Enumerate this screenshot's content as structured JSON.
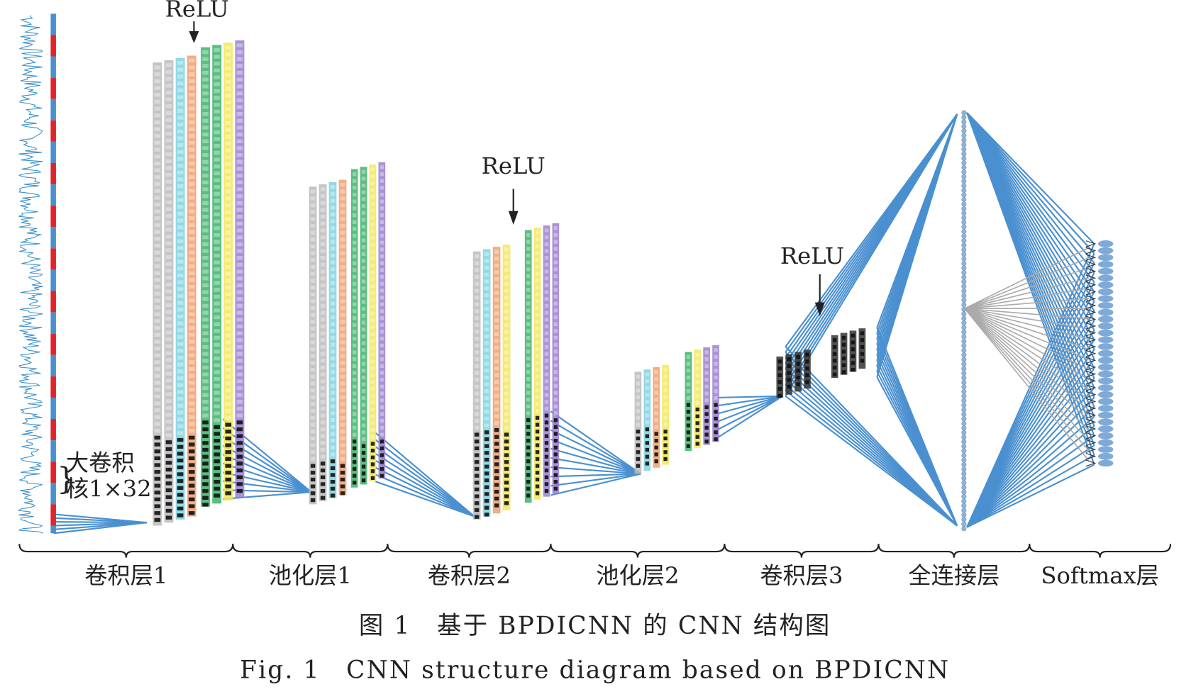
{
  "relu_labels": [
    "ReLU",
    "ReLU",
    "ReLU"
  ],
  "kernel_label": [
    "大卷积",
    "核1×32"
  ],
  "layers": [
    "卷积层1",
    "池化层1",
    "卷积层2",
    "池化层2",
    "卷积层3",
    "全连接层",
    "Softmax层"
  ],
  "caption": {
    "zh": "图 1　基于 BPDICNN 的 CNN 结构图",
    "en": "Fig. 1　CNN structure diagram based on BPDICNN"
  }
}
